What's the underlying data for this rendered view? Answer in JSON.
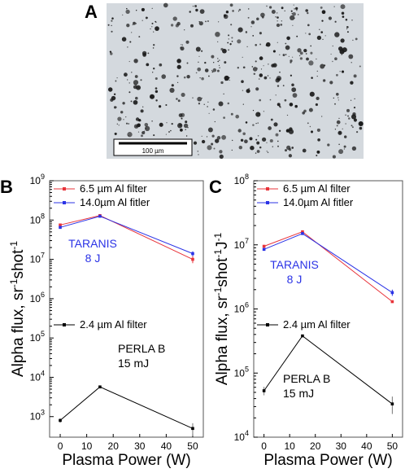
{
  "panel_a": {
    "label": "A",
    "scale_bar": "100 µm",
    "colors": {
      "background": "#d4d9de",
      "particle": "#1a1a1a"
    }
  },
  "chart_data": [
    {
      "panel": "B",
      "type": "line",
      "log_scale_y": true,
      "xlabel": "Plasma Power (W)",
      "ylabel": "Alpha flux, sr-1shot-1",
      "xticks": [
        0,
        10,
        20,
        30,
        40,
        50
      ],
      "xlim": [
        -4,
        54
      ],
      "ylim": [
        300,
        1000000000
      ],
      "ytick_exponents": [
        3,
        4,
        5,
        6,
        7,
        8,
        9
      ],
      "legend_position": "top",
      "series": [
        {
          "name": "6.5 µm Al filter",
          "color": "#e8333a",
          "x": [
            0,
            15,
            50
          ],
          "y": [
            75000000,
            130000000,
            10000000
          ],
          "err": [
            0,
            0,
            2000000
          ]
        },
        {
          "name": "14.0µm Al fitler",
          "color": "#2b33e6",
          "x": [
            0,
            15,
            50
          ],
          "y": [
            65000000,
            125000000,
            14000000
          ],
          "err": [
            0,
            0,
            2000000
          ]
        },
        {
          "name": "2.4 µm Al filter",
          "color": "#000000",
          "x": [
            0,
            15,
            50
          ],
          "y": [
            800,
            5700,
            500
          ],
          "err": [
            100,
            0,
            180
          ]
        }
      ],
      "annotations": [
        {
          "text": "TARANIS",
          "color": "#2b33e6"
        },
        {
          "text": "8 J",
          "color": "#2b33e6"
        },
        {
          "text": "PERLA B",
          "color": "#000000"
        },
        {
          "text": "15 mJ",
          "color": "#000000"
        }
      ]
    },
    {
      "panel": "C",
      "type": "line",
      "log_scale_y": true,
      "xlabel": "Plasma Power (W)",
      "ylabel": "Alpha flux, sr-1shot-1J-1",
      "xticks": [
        0,
        10,
        20,
        30,
        40,
        50
      ],
      "xlim": [
        -4,
        54
      ],
      "ylim": [
        10000,
        100000000
      ],
      "ytick_exponents": [
        4,
        5,
        6,
        7,
        8
      ],
      "legend_position": "top",
      "series": [
        {
          "name": "6.5 µm Al filter",
          "color": "#e8333a",
          "x": [
            0,
            15,
            50
          ],
          "y": [
            9500000,
            16000000,
            1300000
          ],
          "err": [
            0,
            0,
            0
          ]
        },
        {
          "name": "14.0µm Al fitler",
          "color": "#2b33e6",
          "x": [
            0,
            15,
            50
          ],
          "y": [
            8500000,
            15000000,
            1800000
          ],
          "err": [
            0,
            0,
            200000
          ]
        },
        {
          "name": "2.4 µm Al filter",
          "color": "#000000",
          "x": [
            0,
            15,
            50
          ],
          "y": [
            53000,
            380000,
            33000
          ],
          "err": [
            8000,
            0,
            10000
          ]
        }
      ],
      "annotations": [
        {
          "text": "TARANIS",
          "color": "#2b33e6"
        },
        {
          "text": "8 J",
          "color": "#2b33e6"
        },
        {
          "text": "PERLA B",
          "color": "#000000"
        },
        {
          "text": "15 mJ",
          "color": "#000000"
        }
      ]
    }
  ]
}
